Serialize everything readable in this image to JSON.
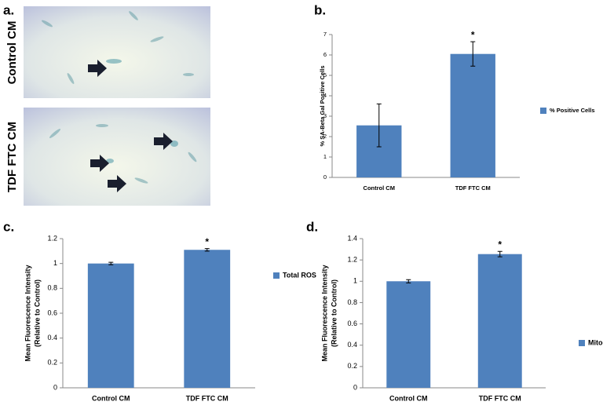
{
  "panel_a": {
    "label": "a.",
    "images": [
      {
        "label": "Control CM"
      },
      {
        "label": "TDF FTC CM"
      }
    ]
  },
  "chart_data": [
    {
      "type": "bar",
      "panel": "b.",
      "ylabel": [
        "% SA-Beta Gal Positive Cells"
      ],
      "categories": [
        "Control CM",
        "TDF FTC CM"
      ],
      "series": [
        {
          "name": "% Positive Cells",
          "color": "#4f81bd",
          "values": [
            2.55,
            6.05
          ],
          "errors": [
            1.05,
            0.6
          ]
        }
      ],
      "significance": [
        null,
        "*"
      ],
      "ylim": [
        0,
        7
      ],
      "yticks": [
        0,
        1,
        2,
        3,
        4,
        5,
        6,
        7
      ]
    },
    {
      "type": "bar",
      "panel": "c.",
      "ylabel": [
        "Mean Fluorescence Intensity",
        "(Relative to Control)"
      ],
      "categories": [
        "Control CM",
        "TDF FTC CM"
      ],
      "series": [
        {
          "name": "Total ROS",
          "color": "#4f81bd",
          "values": [
            1.0,
            1.11
          ],
          "errors": [
            0.01,
            0.01
          ]
        }
      ],
      "significance": [
        null,
        "*"
      ],
      "ylim": [
        0,
        1.2
      ],
      "yticks": [
        0,
        0.2,
        0.4,
        0.6,
        0.8,
        1,
        1.2
      ]
    },
    {
      "type": "bar",
      "panel": "d.",
      "ylabel": [
        "Mean Fluorescence Intensity",
        "(Relative to Control)"
      ],
      "categories": [
        "Control CM",
        "TDF FTC CM"
      ],
      "series": [
        {
          "name": "Mitochondrial ROS",
          "color": "#4f81bd",
          "values": [
            1.0,
            1.255
          ],
          "errors": [
            0.015,
            0.025
          ]
        }
      ],
      "significance": [
        null,
        "*"
      ],
      "ylim": [
        0,
        1.4
      ],
      "yticks": [
        0,
        0.2,
        0.4,
        0.6,
        0.8,
        1,
        1.2,
        1.4
      ]
    }
  ]
}
